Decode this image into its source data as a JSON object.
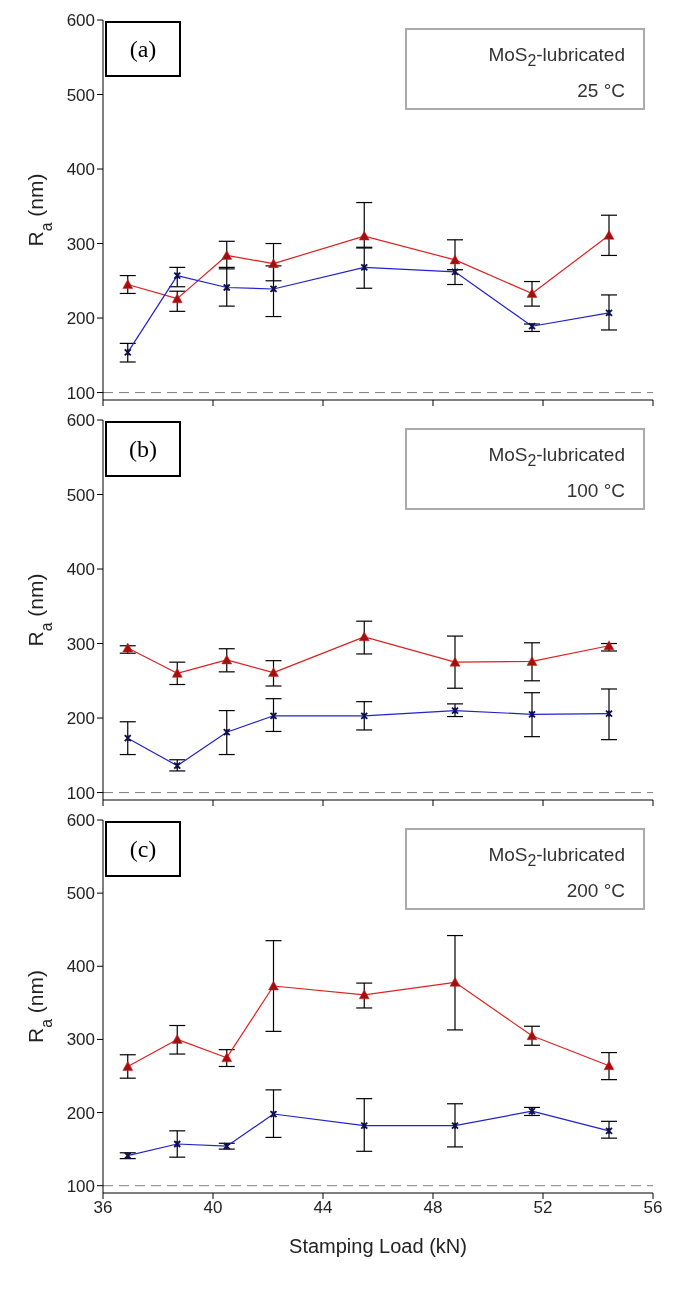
{
  "chart_data": [
    {
      "type": "line",
      "annotations": [
        "(a)",
        "MoS$_{2}$-lubricated",
        "25 °C"
      ],
      "ylabel": "R$_{a}$ (nm)",
      "x": [
        36.9,
        38.7,
        40.5,
        42.2,
        45.5,
        48.8,
        51.6,
        54.4
      ],
      "xlim": [
        36,
        56
      ],
      "xticks": [
        36,
        40,
        44,
        48,
        52,
        56
      ],
      "ylim": [
        90,
        600
      ],
      "yticks": [
        100,
        200,
        300,
        400,
        500,
        600
      ],
      "tick_labels": "y",
      "series": [
        {
          "color": "#dd2222",
          "marker": "triangle",
          "values": [
            245,
            226,
            284,
            273,
            310,
            278,
            233,
            311
          ],
          "errors": [
            [
              233,
              257
            ],
            [
              209,
              236
            ],
            [
              266,
              303
            ],
            [
              250,
              300
            ],
            [
              295,
              355
            ],
            [
              265,
              305
            ],
            [
              216,
              249
            ],
            [
              284,
              338
            ]
          ]
        },
        {
          "color": "#2222cc",
          "marker": "cross",
          "values": [
            154,
            257,
            241,
            239,
            268,
            262,
            189,
            207
          ],
          "errors": [
            [
              141,
              166
            ],
            [
              242,
              268
            ],
            [
              216,
              268
            ],
            [
              202,
              270
            ],
            [
              240,
              294
            ],
            [
              245,
              265
            ],
            [
              182,
              192
            ],
            [
              184,
              231
            ]
          ]
        }
      ],
      "ref_lines": [
        {
          "axis": "y",
          "value": 100,
          "color": "#808080",
          "line_style": "dashed"
        }
      ]
    },
    {
      "type": "line",
      "annotations": [
        "(b)",
        "MoS$_{2}$-lubricated",
        "100 °C"
      ],
      "ylabel": "R$_{a}$ (nm)",
      "x": [
        36.9,
        38.7,
        40.5,
        42.2,
        45.5,
        48.8,
        51.6,
        54.4
      ],
      "xlim": [
        36,
        56
      ],
      "xticks": [
        36,
        40,
        44,
        48,
        52,
        56
      ],
      "ylim": [
        90,
        600
      ],
      "yticks": [
        100,
        200,
        300,
        400,
        500,
        600
      ],
      "tick_labels": "y",
      "series": [
        {
          "color": "#dd2222",
          "marker": "triangle",
          "values": [
            294,
            260,
            278,
            261,
            309,
            275,
            276,
            297
          ],
          "errors": [
            [
              287,
              297
            ],
            [
              245,
              275
            ],
            [
              262,
              293
            ],
            [
              243,
              277
            ],
            [
              286,
              330
            ],
            [
              240,
              310
            ],
            [
              250,
              301
            ],
            [
              290,
              300
            ]
          ]
        },
        {
          "color": "#2222cc",
          "marker": "cross",
          "values": [
            173,
            136,
            181,
            203,
            203,
            210,
            205,
            206
          ],
          "errors": [
            [
              151,
              195
            ],
            [
              129,
              144
            ],
            [
              151,
              210
            ],
            [
              182,
              226
            ],
            [
              184,
              222
            ],
            [
              202,
              219
            ],
            [
              175,
              234
            ],
            [
              171,
              239
            ]
          ]
        }
      ],
      "ref_lines": [
        {
          "axis": "y",
          "value": 100,
          "color": "#808080",
          "line_style": "dashed"
        }
      ]
    },
    {
      "type": "line",
      "annotations": [
        "(c)",
        "MoS$_{2}$-lubricated",
        "200 °C"
      ],
      "xlabel": "Stamping Load (kN)",
      "ylabel": "R$_{a}$ (nm)",
      "x": [
        36.9,
        38.7,
        40.5,
        42.2,
        45.5,
        48.8,
        51.6,
        54.4
      ],
      "xlim": [
        36,
        56
      ],
      "xticks": [
        36,
        40,
        44,
        48,
        52,
        56
      ],
      "ylim": [
        90,
        600
      ],
      "yticks": [
        100,
        200,
        300,
        400,
        500,
        600
      ],
      "series": [
        {
          "color": "#dd2222",
          "marker": "triangle",
          "values": [
            263,
            300,
            275,
            373,
            361,
            378,
            305,
            264
          ],
          "errors": [
            [
              247,
              279
            ],
            [
              280,
              319
            ],
            [
              263,
              286
            ],
            [
              311,
              435
            ],
            [
              343,
              377
            ],
            [
              313,
              442
            ],
            [
              292,
              318
            ],
            [
              245,
              282
            ]
          ]
        },
        {
          "color": "#2222cc",
          "marker": "cross",
          "values": [
            141,
            157,
            154,
            198,
            182,
            182,
            202,
            175
          ],
          "errors": [
            [
              137,
              145
            ],
            [
              139,
              175
            ],
            [
              150,
              158
            ],
            [
              166,
              231
            ],
            [
              147,
              219
            ],
            [
              153,
              212
            ],
            [
              196,
              207
            ],
            [
              165,
              188
            ]
          ]
        }
      ],
      "ref_lines": [
        {
          "axis": "y",
          "value": 100,
          "color": "#808080",
          "line_style": "dashed"
        }
      ]
    }
  ]
}
